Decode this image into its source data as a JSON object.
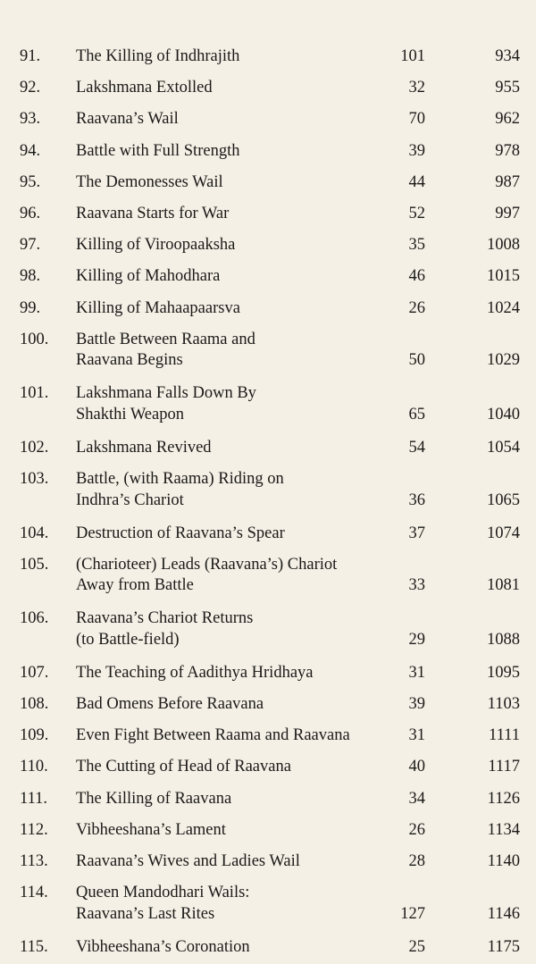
{
  "contents": {
    "rows": [
      {
        "number": "91.",
        "title": [
          "The Killing of Indhrajith"
        ],
        "verses": "101",
        "page": "934"
      },
      {
        "number": "92.",
        "title": [
          "Lakshmana Extolled"
        ],
        "verses": "32",
        "page": "955"
      },
      {
        "number": "93.",
        "title": [
          "Raavana’s Wail"
        ],
        "verses": "70",
        "page": "962"
      },
      {
        "number": "94.",
        "title": [
          "Battle with Full Strength"
        ],
        "verses": "39",
        "page": "978"
      },
      {
        "number": "95.",
        "title": [
          "The Demonesses Wail"
        ],
        "verses": "44",
        "page": "987"
      },
      {
        "number": "96.",
        "title": [
          "Raavana Starts for War"
        ],
        "verses": "52",
        "page": "997"
      },
      {
        "number": "97.",
        "title": [
          "Killing of Viroopaaksha"
        ],
        "verses": "35",
        "page": "1008"
      },
      {
        "number": "98.",
        "title": [
          "Killing of Mahodhara"
        ],
        "verses": "46",
        "page": "1015"
      },
      {
        "number": "99.",
        "title": [
          "Killing of Mahaapaarsva"
        ],
        "verses": "26",
        "page": "1024"
      },
      {
        "number": "100.",
        "title": [
          "Battle Between Raama and",
          "Raavana Begins"
        ],
        "verses": "50",
        "page": "1029"
      },
      {
        "number": "101.",
        "title": [
          "Lakshmana Falls Down By",
          "Shakthi Weapon"
        ],
        "verses": "65",
        "page": "1040"
      },
      {
        "number": "102.",
        "title": [
          "Lakshmana Revived"
        ],
        "verses": "54",
        "page": "1054"
      },
      {
        "number": "103.",
        "title": [
          "Battle, (with Raama) Riding on",
          "Indhra’s Chariot"
        ],
        "verses": "36",
        "page": "1065"
      },
      {
        "number": "104.",
        "title": [
          "Destruction of Raavana’s Spear"
        ],
        "verses": "37",
        "page": "1074"
      },
      {
        "number": "105.",
        "title": [
          "(Charioteer) Leads (Raavana’s) Chariot",
          "Away from Battle"
        ],
        "verses": "33",
        "page": "1081"
      },
      {
        "number": "106.",
        "title": [
          "Raavana’s Chariot Returns",
          "(to Battle-field)"
        ],
        "verses": "29",
        "page": "1088"
      },
      {
        "number": "107.",
        "title": [
          "The Teaching of Aadithya Hridhaya"
        ],
        "verses": "31",
        "page": "1095"
      },
      {
        "number": "108.",
        "title": [
          "Bad Omens Before Raavana"
        ],
        "verses": "39",
        "page": "1103"
      },
      {
        "number": "109.",
        "title": [
          "Even Fight Between Raama and Raavana"
        ],
        "verses": "31",
        "page": "1111"
      },
      {
        "number": "110.",
        "title": [
          "The Cutting of Head of Raavana"
        ],
        "verses": "40",
        "page": "1117"
      },
      {
        "number": "111.",
        "title": [
          "The Killing of Raavana"
        ],
        "verses": "34",
        "page": "1126"
      },
      {
        "number": "112.",
        "title": [
          "Vibheeshana’s Lament"
        ],
        "verses": "26",
        "page": "1134"
      },
      {
        "number": "113.",
        "title": [
          "Raavana’s Wives and Ladies Wail"
        ],
        "verses": "28",
        "page": "1140"
      },
      {
        "number": "114.",
        "title": [
          "Queen Mandodhari Wails:",
          "Raavana’s Last Rites"
        ],
        "verses": "127",
        "page": "1146"
      },
      {
        "number": "115.",
        "title": [
          "Vibheeshana’s Coronation"
        ],
        "verses": "25",
        "page": "1175"
      }
    ]
  }
}
